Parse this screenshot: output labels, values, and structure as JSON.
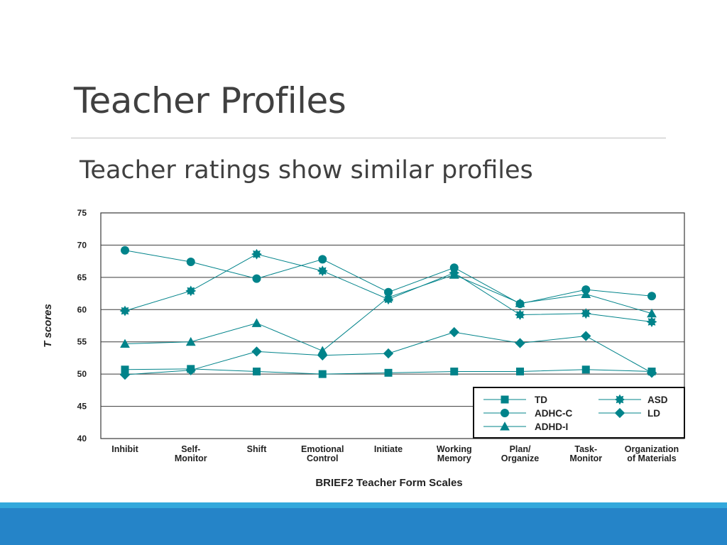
{
  "slide": {
    "title": "Teacher Profiles",
    "subtitle": "Teacher ratings show similar profiles"
  },
  "colors": {
    "series": "#00838a",
    "grid": "#3a3a3a",
    "title_text": "#404040",
    "footer_dark": "#2584c8",
    "footer_light": "#33a8dc"
  },
  "chart_data": {
    "type": "line",
    "xlabel": "BRIEF2 Teacher Form Scales",
    "ylabel": "T scores",
    "ylim": [
      40,
      75
    ],
    "yticks": [
      40,
      45,
      50,
      55,
      60,
      65,
      70,
      75
    ],
    "grid": true,
    "legend_position": "bottom-right",
    "categories": [
      [
        "Inhibit"
      ],
      [
        "Self-",
        "Monitor"
      ],
      [
        "Shift"
      ],
      [
        "Emotional",
        "Control"
      ],
      [
        "Initiate"
      ],
      [
        "Working",
        "Memory"
      ],
      [
        "Plan/",
        "Organize"
      ],
      [
        "Task-",
        "Monitor"
      ],
      [
        "Organization",
        "of Materials"
      ]
    ],
    "series": [
      {
        "name": "TD",
        "marker": "square",
        "values": [
          50.7,
          50.8,
          50.4,
          50.0,
          50.2,
          50.4,
          50.4,
          50.7,
          50.4
        ]
      },
      {
        "name": "ADHC-C",
        "marker": "circle",
        "values": [
          69.2,
          67.4,
          64.8,
          67.8,
          62.7,
          66.5,
          60.9,
          63.1,
          62.1
        ]
      },
      {
        "name": "ADHD-I",
        "marker": "triangle",
        "values": [
          54.7,
          55.0,
          57.9,
          53.6,
          61.9,
          65.4,
          61.0,
          62.4,
          59.4
        ]
      },
      {
        "name": "ASD",
        "marker": "star",
        "values": [
          59.8,
          62.9,
          68.6,
          66.0,
          61.6,
          65.7,
          59.2,
          59.4,
          58.1
        ]
      },
      {
        "name": "LD",
        "marker": "diamond",
        "values": [
          49.9,
          50.6,
          53.5,
          52.9,
          53.2,
          56.5,
          54.8,
          55.9,
          50.2
        ]
      }
    ]
  }
}
